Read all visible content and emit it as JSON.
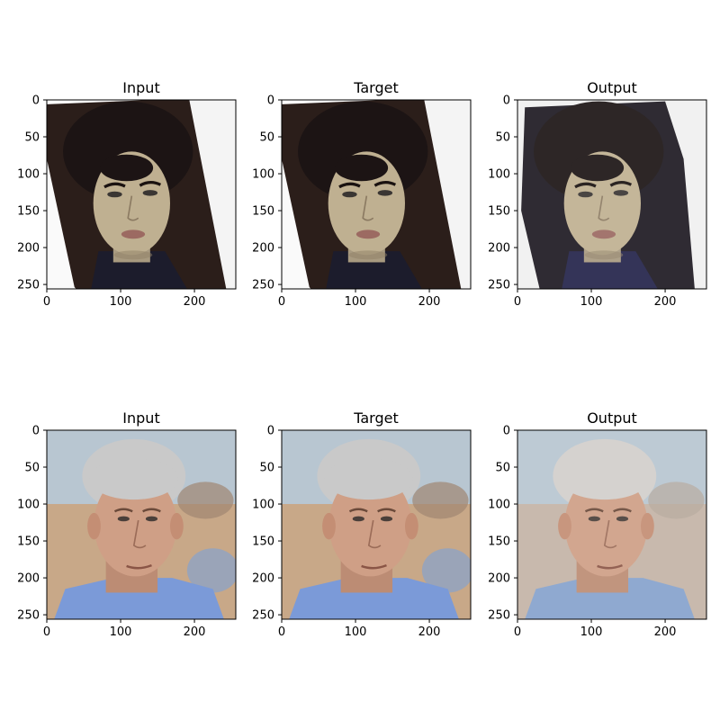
{
  "figure": {
    "panels": [
      {
        "title": "Input",
        "subject": "young man with dark curly hair, rotated photo with white border",
        "row": 1,
        "col": 1
      },
      {
        "title": "Target",
        "subject": "young man with dark curly hair, rotated photo with white border",
        "row": 1,
        "col": 2
      },
      {
        "title": "Output",
        "subject": "generated face of young man with dark hair, smooth background",
        "row": 1,
        "col": 3
      },
      {
        "title": "Input",
        "subject": "grey-haired man in blue shirt, beach background",
        "row": 2,
        "col": 1
      },
      {
        "title": "Target",
        "subject": "grey-haired man in blue shirt, beach background",
        "row": 2,
        "col": 2
      },
      {
        "title": "Output",
        "subject": "generated face of grey-haired man, blurred background",
        "row": 2,
        "col": 3
      }
    ],
    "x_ticks": [
      "0",
      "100",
      "200"
    ],
    "y_ticks": [
      "0",
      "50",
      "100",
      "150",
      "200",
      "250"
    ],
    "axis_range": [
      0,
      256
    ],
    "colors": {
      "dark_hair": "#1c1414",
      "skin_1": "#bfb091",
      "shirt_1": "#1c1c2c",
      "grey_hair": "#c9c9c9",
      "skin_2": "#cf9f86",
      "shirt_2": "#7b9ad8",
      "sky_2": "#b8c6d1",
      "sand_2": "#c8a888"
    }
  }
}
